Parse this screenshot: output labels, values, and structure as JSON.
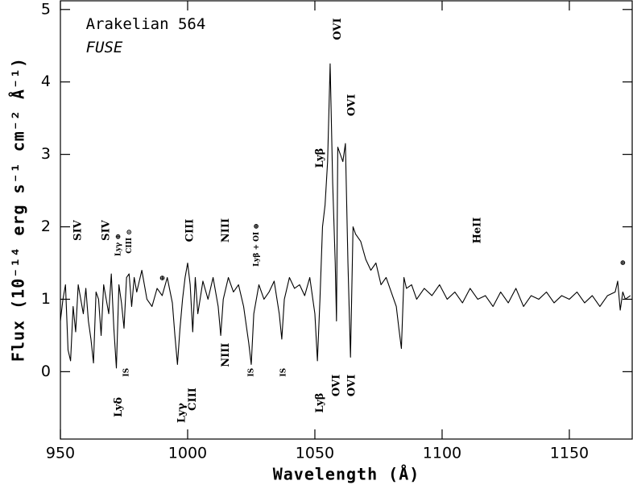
{
  "chart_data": {
    "type": "line",
    "xlabel": "Wavelength (Å)",
    "ylabel": "Flux (10⁻¹⁴ erg s⁻¹ cm⁻² Å⁻¹)",
    "xlim": [
      950,
      1174.7
    ],
    "ylim": [
      -0.93,
      5.12
    ],
    "xticks": [
      950,
      1000,
      1050,
      1100,
      1150
    ],
    "yticks": [
      0,
      1,
      2,
      3,
      4,
      5
    ],
    "color": "#000000",
    "x": [
      950,
      951,
      952,
      953,
      954,
      955,
      956,
      957,
      958,
      959,
      960,
      961,
      962,
      963,
      964,
      965,
      966,
      967,
      968,
      969,
      970,
      971,
      972,
      973,
      974,
      975,
      976,
      977,
      978,
      979,
      980,
      982,
      984,
      986,
      988,
      990,
      992,
      994,
      995,
      996,
      997,
      998,
      999,
      1000,
      1001,
      1002,
      1003,
      1004,
      1006,
      1008,
      1010,
      1012,
      1013,
      1014,
      1016,
      1018,
      1020,
      1022,
      1024,
      1025,
      1026,
      1028,
      1030,
      1032,
      1034,
      1036,
      1037,
      1038,
      1040,
      1042,
      1044,
      1046,
      1048,
      1050,
      1051,
      1052,
      1053,
      1054,
      1055,
      1056,
      1057,
      1058,
      1058.5,
      1059,
      1060,
      1061,
      1062,
      1063,
      1064,
      1065,
      1066,
      1068,
      1070,
      1072,
      1074,
      1076,
      1078,
      1080,
      1082,
      1083,
      1084,
      1085,
      1086,
      1088,
      1090,
      1093,
      1096,
      1099,
      1102,
      1105,
      1108,
      1111,
      1114,
      1117,
      1120,
      1123,
      1126,
      1129,
      1132,
      1135,
      1138,
      1141,
      1144,
      1147,
      1150,
      1153,
      1156,
      1159,
      1162,
      1165,
      1168,
      1169,
      1170,
      1171,
      1172,
      1174
    ],
    "values": [
      0.7,
      1.0,
      1.2,
      0.3,
      0.15,
      0.9,
      0.55,
      1.2,
      1.0,
      0.8,
      1.15,
      0.7,
      0.45,
      0.12,
      1.1,
      1.0,
      0.5,
      1.2,
      1.0,
      0.8,
      1.35,
      0.6,
      0.05,
      1.2,
      0.95,
      0.6,
      1.3,
      1.35,
      0.9,
      1.3,
      1.1,
      1.4,
      1.0,
      0.9,
      1.15,
      1.05,
      1.3,
      0.95,
      0.5,
      0.1,
      0.6,
      1.0,
      1.3,
      1.5,
      1.2,
      0.55,
      1.3,
      0.8,
      1.25,
      1.0,
      1.3,
      0.9,
      0.5,
      1.0,
      1.3,
      1.1,
      1.2,
      0.9,
      0.4,
      0.1,
      0.8,
      1.2,
      1.0,
      1.1,
      1.25,
      0.8,
      0.45,
      1.0,
      1.3,
      1.15,
      1.2,
      1.05,
      1.3,
      0.8,
      0.15,
      1.0,
      2.0,
      2.3,
      2.9,
      4.25,
      2.6,
      1.5,
      0.7,
      3.1,
      3.0,
      2.9,
      3.15,
      1.5,
      0.2,
      2.0,
      1.9,
      1.8,
      1.55,
      1.4,
      1.5,
      1.2,
      1.3,
      1.1,
      0.9,
      0.6,
      0.32,
      1.3,
      1.15,
      1.2,
      1.0,
      1.15,
      1.05,
      1.2,
      1.0,
      1.1,
      0.95,
      1.15,
      1.0,
      1.05,
      0.9,
      1.1,
      0.95,
      1.15,
      0.9,
      1.05,
      1.0,
      1.1,
      0.95,
      1.05,
      1.0,
      1.1,
      0.95,
      1.05,
      0.9,
      1.05,
      1.1,
      1.25,
      0.85,
      1.1,
      1.0,
      1.05
    ],
    "annotations": [
      {
        "text": "Arakelian 564",
        "x": 960,
        "y": 4.79,
        "orientation": "horizontal",
        "style": "inset"
      },
      {
        "text": "FUSE",
        "x": 960,
        "y": 4.47,
        "orientation": "horizontal",
        "style": "inset-italic"
      },
      {
        "text": "SIV",
        "x": 957,
        "y": 1.95,
        "orientation": "vertical",
        "style": "normal"
      },
      {
        "text": "SIV",
        "x": 968,
        "y": 1.95,
        "orientation": "vertical",
        "style": "normal"
      },
      {
        "text": "Lyγ ⊕",
        "x": 972.8,
        "y": 1.75,
        "orientation": "vertical",
        "style": "small"
      },
      {
        "text": "CIII ⊙",
        "x": 977,
        "y": 1.8,
        "orientation": "vertical",
        "style": "small"
      },
      {
        "text": "⊕",
        "x": 990,
        "y": 1.29,
        "orientation": "horizontal",
        "style": "small"
      },
      {
        "text": "CIII",
        "x": 1001,
        "y": 1.95,
        "orientation": "vertical",
        "style": "normal"
      },
      {
        "text": "NIII",
        "x": 1015,
        "y": 1.95,
        "orientation": "vertical",
        "style": "normal"
      },
      {
        "text": "Lyβ + OI ⊕",
        "x": 1027,
        "y": 1.75,
        "orientation": "vertical",
        "style": "small"
      },
      {
        "text": "Lyβ",
        "x": 1052,
        "y": 2.95,
        "orientation": "vertical",
        "style": "normal"
      },
      {
        "text": "OVI",
        "x": 1059,
        "y": 4.73,
        "orientation": "vertical",
        "style": "normal"
      },
      {
        "text": "OVI",
        "x": 1064.6,
        "y": 3.68,
        "orientation": "vertical",
        "style": "normal"
      },
      {
        "text": "HeII",
        "x": 1114,
        "y": 1.95,
        "orientation": "vertical",
        "style": "normal"
      },
      {
        "text": "⊕",
        "x": 1171,
        "y": 1.5,
        "orientation": "horizontal",
        "style": "small"
      },
      {
        "text": "Lyδ",
        "x": 973,
        "y": -0.49,
        "orientation": "vertical",
        "style": "normal"
      },
      {
        "text": "IS",
        "x": 976,
        "y": -0.01,
        "orientation": "vertical",
        "style": "small"
      },
      {
        "text": "Lyγ",
        "x": 997.8,
        "y": -0.57,
        "orientation": "vertical",
        "style": "normal"
      },
      {
        "text": "CIII",
        "x": 1002,
        "y": -0.38,
        "orientation": "vertical",
        "style": "normal"
      },
      {
        "text": "NIII",
        "x": 1015,
        "y": 0.23,
        "orientation": "vertical",
        "style": "normal"
      },
      {
        "text": "IS",
        "x": 1025,
        "y": -0.01,
        "orientation": "vertical",
        "style": "small"
      },
      {
        "text": "IS",
        "x": 1037.6,
        "y": -0.01,
        "orientation": "vertical",
        "style": "small"
      },
      {
        "text": "Lyβ",
        "x": 1052,
        "y": -0.43,
        "orientation": "vertical",
        "style": "normal"
      },
      {
        "text": "OVI",
        "x": 1058.5,
        "y": -0.19,
        "orientation": "vertical",
        "style": "normal"
      },
      {
        "text": "OVI",
        "x": 1064.6,
        "y": -0.19,
        "orientation": "vertical",
        "style": "normal"
      }
    ]
  }
}
